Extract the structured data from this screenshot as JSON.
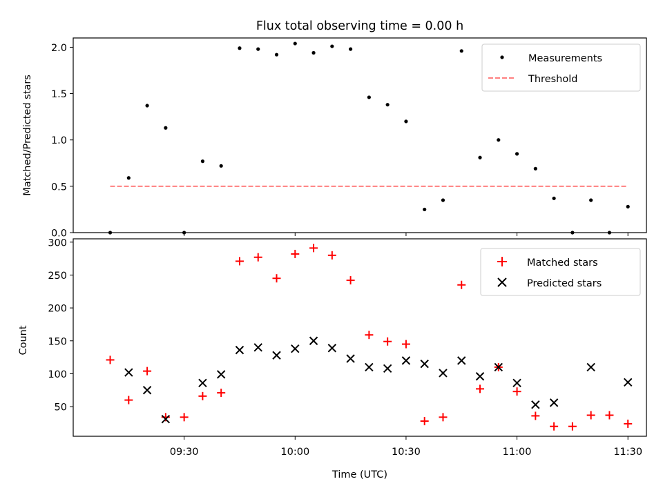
{
  "chart_data": [
    {
      "type": "scatter",
      "title": "Flux total observing time = 0.00 h",
      "ylabel": "Matched/Predicted stars",
      "xlabel": "",
      "ylim": [
        0,
        2.1
      ],
      "yticks": [
        0.0,
        0.5,
        1.0,
        1.5,
        2.0
      ],
      "ytick_labels": [
        "0.0",
        "0.5",
        "1.0",
        "1.5",
        "2.0"
      ],
      "grid": false,
      "legend": "top-right",
      "x": [
        "09:10",
        "09:15",
        "09:20",
        "09:25",
        "09:30",
        "09:35",
        "09:40",
        "09:45",
        "09:50",
        "09:55",
        "10:00",
        "10:05",
        "10:10",
        "10:15",
        "10:20",
        "10:25",
        "10:30",
        "10:35",
        "10:40",
        "10:45",
        "10:50",
        "10:55",
        "11:00",
        "11:05",
        "11:10",
        "11:15",
        "11:20",
        "11:25",
        "11:30"
      ],
      "series": [
        {
          "name": "Measurements",
          "kind": "scatter",
          "color": "#000000",
          "values": [
            0.0,
            0.59,
            1.37,
            1.13,
            0.0,
            0.77,
            0.72,
            1.99,
            1.98,
            1.92,
            2.04,
            1.94,
            2.01,
            1.98,
            1.46,
            1.38,
            1.2,
            0.25,
            0.35,
            1.96,
            0.81,
            1.0,
            0.85,
            0.69,
            0.37,
            0.0,
            0.35,
            0.0,
            0.28
          ]
        },
        {
          "name": "Threshold",
          "kind": "line",
          "style": "dashed",
          "color": "#ff7f7f",
          "x": [
            "09:10",
            "11:30"
          ],
          "values": [
            0.5,
            0.5
          ]
        }
      ]
    },
    {
      "type": "scatter",
      "title": "",
      "ylabel": "Count",
      "xlabel": "Time (UTC)",
      "ylim": [
        5,
        305
      ],
      "yticks": [
        50,
        100,
        150,
        200,
        250,
        300
      ],
      "ytick_labels": [
        "50",
        "100",
        "150",
        "200",
        "250",
        "300"
      ],
      "xlim": [
        "09:00",
        "11:35"
      ],
      "xticks": [
        "09:30",
        "10:00",
        "10:30",
        "11:00",
        "11:30"
      ],
      "xtick_labels": [
        "09:30",
        "10:00",
        "10:30",
        "11:00",
        "11:30"
      ],
      "grid": false,
      "legend": "top-right",
      "series": [
        {
          "name": "Matched stars",
          "marker": "plus",
          "color": "#ff0000",
          "x": [
            "09:10",
            "09:15",
            "09:20",
            "09:25",
            "09:30",
            "09:35",
            "09:40",
            "09:45",
            "09:50",
            "09:55",
            "10:00",
            "10:05",
            "10:10",
            "10:15",
            "10:20",
            "10:25",
            "10:30",
            "10:35",
            "10:40",
            "10:45",
            "10:50",
            "10:55",
            "11:00",
            "11:05",
            "11:10",
            "11:15",
            "11:20",
            "11:25",
            "11:30"
          ],
          "values": [
            121,
            60,
            104,
            34,
            34,
            66,
            71,
            271,
            277,
            245,
            282,
            291,
            280,
            242,
            159,
            149,
            145,
            28,
            34,
            235,
            77,
            110,
            73,
            36,
            20,
            20,
            37,
            37,
            24
          ]
        },
        {
          "name": "Predicted stars",
          "marker": "x",
          "color": "#000000",
          "x": [
            "09:15",
            "09:20",
            "09:25",
            "09:35",
            "09:40",
            "09:45",
            "09:50",
            "09:55",
            "10:00",
            "10:05",
            "10:10",
            "10:15",
            "10:20",
            "10:25",
            "10:30",
            "10:35",
            "10:40",
            "10:45",
            "10:50",
            "10:55",
            "11:00",
            "11:05",
            "11:10",
            "11:20",
            "11:30"
          ],
          "values": [
            102,
            75,
            31,
            86,
            99,
            136,
            140,
            128,
            138,
            150,
            139,
            123,
            110,
            108,
            120,
            115,
            101,
            120,
            96,
            110,
            86,
            53,
            56,
            110,
            87
          ]
        }
      ]
    }
  ]
}
